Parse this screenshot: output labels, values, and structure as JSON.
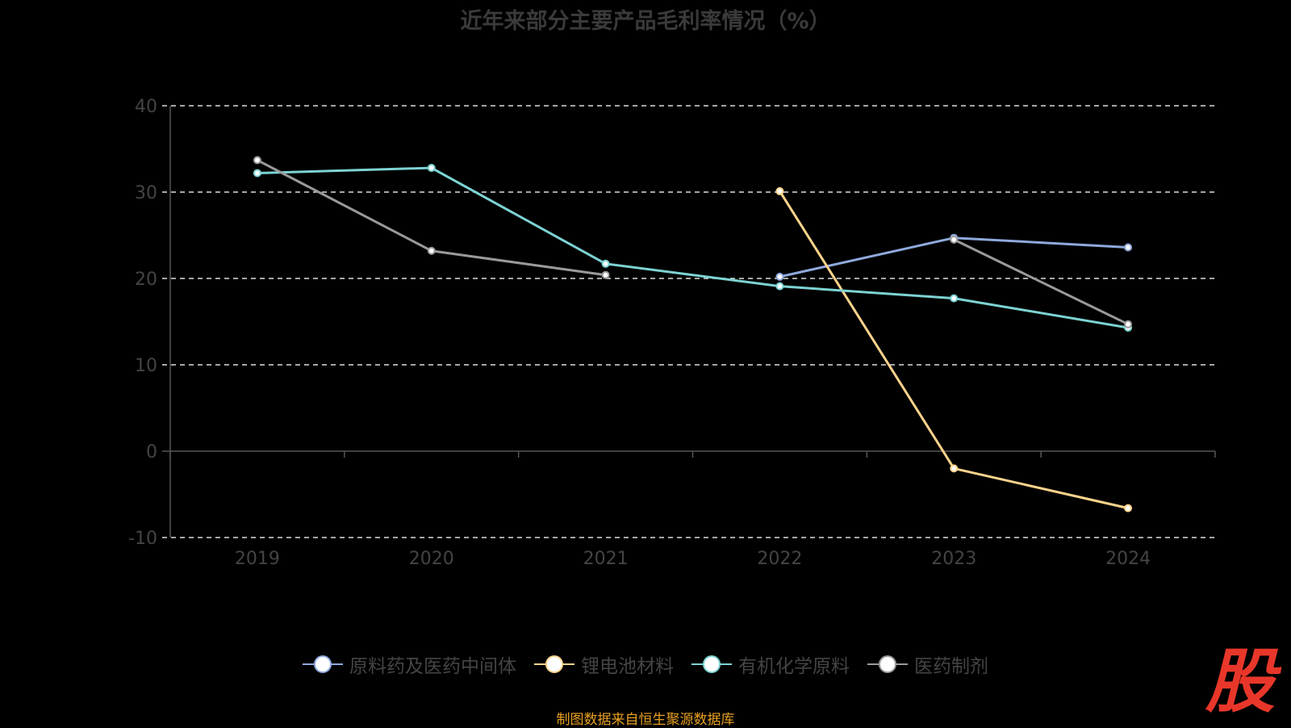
{
  "chart_data": {
    "type": "line",
    "title": "近年来部分主要产品毛利率情况（%）",
    "x": [
      "2019",
      "2020",
      "2021",
      "2022",
      "2023",
      "2024"
    ],
    "ylim": [
      -10,
      40
    ],
    "yticks": [
      -10,
      0,
      10,
      20,
      30,
      40
    ],
    "grid": true,
    "legend_placement": "bottom",
    "series": [
      {
        "name": "原料药及医药中间体",
        "color": "#8fa9dc",
        "values": [
          null,
          null,
          null,
          20.2,
          24.7,
          23.6
        ]
      },
      {
        "name": "锂电池材料",
        "color": "#fcd38c",
        "values": [
          null,
          null,
          null,
          30.1,
          -2.0,
          -6.6
        ]
      },
      {
        "name": "有机化学原料",
        "color": "#7ed3d4",
        "values": [
          32.2,
          32.8,
          21.7,
          19.1,
          17.7,
          14.3
        ]
      },
      {
        "name": "医药制剂",
        "color": "#9a9a9a",
        "values": [
          33.7,
          23.2,
          20.4,
          null,
          24.5,
          14.7
        ]
      }
    ]
  },
  "source": "制图数据来自恒生聚源数据库",
  "logo": "股"
}
